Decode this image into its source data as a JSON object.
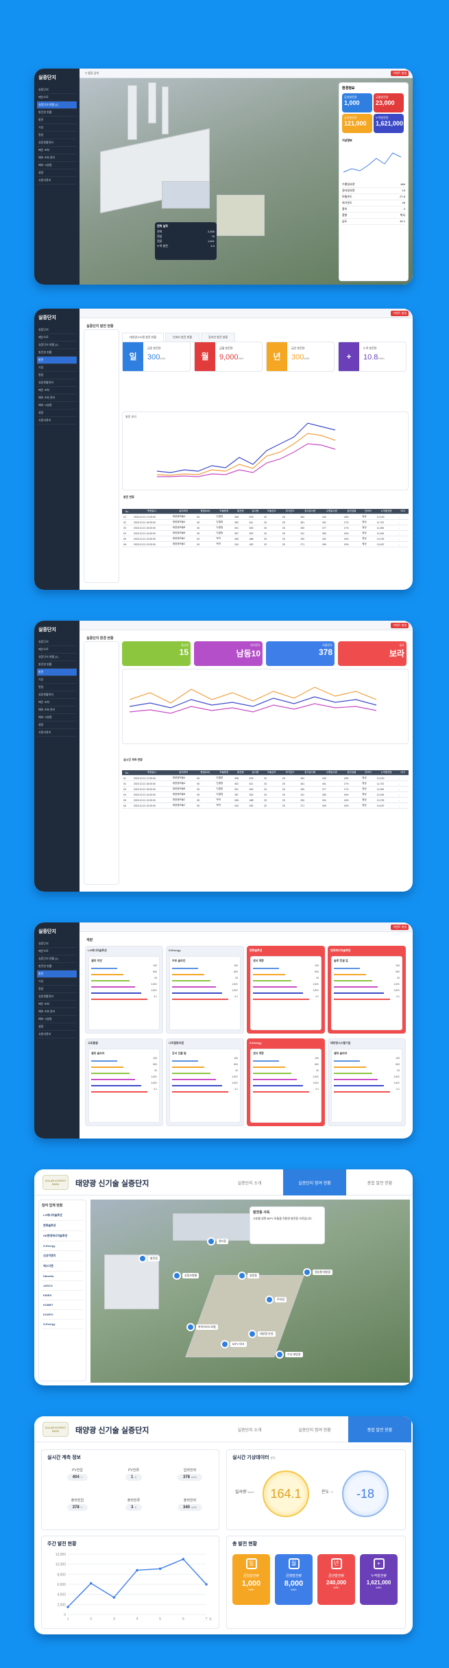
{
  "app": {
    "name": "실증단지",
    "alert": "이벤트 발생"
  },
  "s1": {
    "search": "통합 검색",
    "menu": [
      "실증단지",
      "메인으로",
      "실증단지 현황 [1]",
      "발전량 현황",
      "발전",
      "기상",
      "알림",
      "실증현황관리",
      "메인 조회",
      "예비 조회 관리",
      "예비 시설명",
      "설정",
      "사용자관리"
    ],
    "panel_title": "전력 실적",
    "panel_rows": [
      {
        "label": "전력",
        "value": "2,836"
      },
      {
        "label": "전압",
        "value": "76"
      },
      {
        "label": "전류",
        "value": "1,621"
      },
      {
        "label": "누적 발전",
        "value": "6.3"
      }
    ],
    "right_title": "환경정보",
    "tiles": [
      {
        "label": "당일발전량",
        "value": "1,000"
      },
      {
        "label": "금월발전량",
        "value": "23,000"
      },
      {
        "label": "금년발전량",
        "value": "121,000"
      },
      {
        "label": "누적발전량",
        "value": "1,621,000"
      }
    ],
    "weather_title": "기상정보",
    "weather_rows": [
      {
        "k": "수평일사량",
        "v": "464"
      },
      {
        "k": "경사일사량",
        "v": "13"
      },
      {
        "k": "모듈온도",
        "v": "27.8"
      },
      {
        "k": "외기온도",
        "v": "25"
      },
      {
        "k": "풍속",
        "v": "2"
      },
      {
        "k": "풍향",
        "v": "북서"
      },
      {
        "k": "습도",
        "v": "32.1"
      }
    ]
  },
  "s2": {
    "title": "실증단지 발전 현황",
    "tabs": [
      "태양광시스템 발전 현황",
      "인버터 발전 현황",
      "접속반 발전 현황"
    ],
    "tiles": [
      {
        "icon": "일",
        "label": "금일 발전량",
        "value": "300",
        "unit": "kWh"
      },
      {
        "icon": "월",
        "label": "금월 발전량",
        "value": "9,000",
        "unit": "kWh"
      },
      {
        "icon": "년",
        "label": "금년 발전량",
        "value": "300",
        "unit": "kWh"
      },
      {
        "icon": "+",
        "label": "누적 발전량",
        "value": "10.8",
        "unit": "MWh"
      }
    ],
    "chart_label": "발전 추이",
    "legend": [
      "발전량",
      "일사량"
    ],
    "table_title": "발전 현황",
    "cols": [
      "No.",
      "측정일시",
      "설치위치",
      "용량(kW)",
      "모듈종류",
      "발전량",
      "일사량",
      "모듈온도",
      "외기온도",
      "경사일사량",
      "수평일사량",
      "발전효율",
      "인버터",
      "누적발전량",
      "비고"
    ],
    "rows": [
      [
        "01",
        "2023.10.21 17:00:00",
        "태양광모듈A",
        "50",
        "단결정",
        "398",
        "678",
        "32",
        "25",
        "392",
        "420",
        "18%",
        "정상",
        "12,100",
        "-"
      ],
      [
        "02",
        "2023.10.21 16:00:00",
        "태양광모듈A",
        "50",
        "단결정",
        "352",
        "611",
        "33",
        "25",
        "361",
        "401",
        "17%",
        "정상",
        "11,702",
        "-"
      ],
      [
        "03",
        "2023.10.21 15:00:00",
        "태양광모듈B",
        "50",
        "다결정",
        "301",
        "540",
        "34",
        "26",
        "330",
        "377",
        "17%",
        "정상",
        "11,350",
        "-"
      ],
      [
        "04",
        "2023.10.21 14:00:00",
        "태양광모듈B",
        "50",
        "다결정",
        "287",
        "502",
        "34",
        "26",
        "311",
        "350",
        "16%",
        "정상",
        "11,049",
        "-"
      ],
      [
        "05",
        "2023.10.21 13:00:00",
        "태양광모듈C",
        "50",
        "박막",
        "265",
        "488",
        "33",
        "25",
        "290",
        "331",
        "16%",
        "정상",
        "10,762",
        "-"
      ],
      [
        "06",
        "2023.10.21 12:00:00",
        "태양광모듈C",
        "50",
        "박막",
        "240",
        "452",
        "32",
        "25",
        "271",
        "309",
        "15%",
        "정상",
        "10,497",
        "-"
      ]
    ]
  },
  "s3": {
    "title": "실증단지 환경 현황",
    "tiles": [
      {
        "label": "일사량",
        "value": "15"
      },
      {
        "label": "외기온도",
        "value": "남동10"
      },
      {
        "label": "모듈온도",
        "value": "378"
      },
      {
        "label": "습도",
        "value": "보라"
      }
    ],
    "table_title": "실시간 계측 현황"
  },
  "s4": {
    "title": "계량",
    "groups": [
      {
        "name": "LG에너지솔루션",
        "item": "셀의 미연",
        "hl": false
      },
      {
        "name": "S-Energy",
        "item": "우포 솔라인",
        "hl": false
      },
      {
        "name": "한화솔루션",
        "item": "센서 계량",
        "hl": true
      },
      {
        "name": "현대에너지솔루션",
        "item": "솔루 컨설 업",
        "hl": true
      },
      {
        "name": "고효율셀",
        "item": "셀의 솔라브",
        "hl": false
      },
      {
        "name": "나의협동조합",
        "item": "강서 인플 빌",
        "hl": false
      },
      {
        "name": "S-Energy",
        "item": "센서 계량",
        "hl": true
      },
      {
        "name": "태양광시스템기업",
        "item": "셀의 솔라브",
        "hl": false
      }
    ],
    "vals": [
      "100",
      "500",
      "20",
      "1,621",
      "1,621",
      "4.1"
    ]
  },
  "s5": {
    "logo": "SOLAR EXPERT PARK",
    "title": "태양광 신기술 실증단지",
    "tabs": [
      "실증단지 소개",
      "실증단지 참여 현황",
      "종합 발전 현황"
    ],
    "left_title": "참여 업체 현황",
    "firms": [
      "LG에너지솔루션",
      "한화솔루션",
      "HD현대에너지솔루션",
      "S-Energy",
      "신성이엔지",
      "에스디엔",
      "Hanwha",
      "JASCO",
      "KIDES",
      "KOMET",
      "KOSPO",
      "S-Energy"
    ],
    "popup_title": "발전동 사옥",
    "popup_text": "고효율 양면 BIPV 모듈을 적용한 발전동 사옥입니다.",
    "labels": [
      "발전동",
      "상징조형물",
      "관리동",
      "실증동",
      "주차장",
      "하이브리드모듈",
      "BIPV 데크",
      "태양광 온실",
      "수상 태양광",
      "영농형 태양광"
    ]
  },
  "s6": {
    "logo": "SOLAR EXPERT PARK",
    "title": "태양광 신기술 실증단지",
    "tabs": [
      "실증단지 소개",
      "실증단지 참여 현황",
      "종합 발전 현황"
    ],
    "sec1": "실시간 계측 정보",
    "measures": [
      {
        "label": "PV전압",
        "value": "404",
        "unit": "V"
      },
      {
        "label": "PV전류",
        "value": "1",
        "unit": "A"
      },
      {
        "label": "입력전력",
        "value": "378",
        "unit": "kWh"
      },
      {
        "label": "출력전압",
        "value": "378",
        "unit": "V"
      },
      {
        "label": "출력전류",
        "value": "3",
        "unit": "A"
      },
      {
        "label": "출력전력",
        "value": "340",
        "unit": "kWh"
      }
    ],
    "sec2": "실시간 기상데이터",
    "sec2_note": "분당",
    "irr_label": "일사량",
    "irr_unit": "W/m²",
    "irr": "164.1",
    "temp_label": "온도",
    "temp_unit": "°C",
    "temp": "-18",
    "sec3": "주간 발전 현황",
    "sec4": "총 발전 현황",
    "gen": [
      {
        "icon": "일",
        "label": "금일발전량",
        "value": "1,000",
        "unit": "kWh",
        "color": "#f5a623"
      },
      {
        "icon": "월",
        "label": "금월발전량",
        "value": "8,000",
        "unit": "kWh",
        "color": "#3e7ee8"
      },
      {
        "icon": "년",
        "label": "금년발전량",
        "value": "240,000",
        "unit": "kWh",
        "color": "#ef4d4d"
      },
      {
        "icon": "+",
        "label": "누적발전량",
        "value": "1,621,000",
        "unit": "kWh",
        "color": "#6a3fb8"
      }
    ]
  },
  "chart_data": [
    {
      "type": "line",
      "x": [
        1,
        2,
        3,
        4,
        5,
        6,
        7
      ],
      "xlabel": "일",
      "ylim": [
        0,
        12000
      ],
      "yticks": [
        0,
        2000,
        4000,
        6000,
        8000,
        10000,
        12000
      ],
      "values": [
        1500,
        6200,
        3400,
        8800,
        9100,
        11000,
        6000
      ]
    }
  ]
}
